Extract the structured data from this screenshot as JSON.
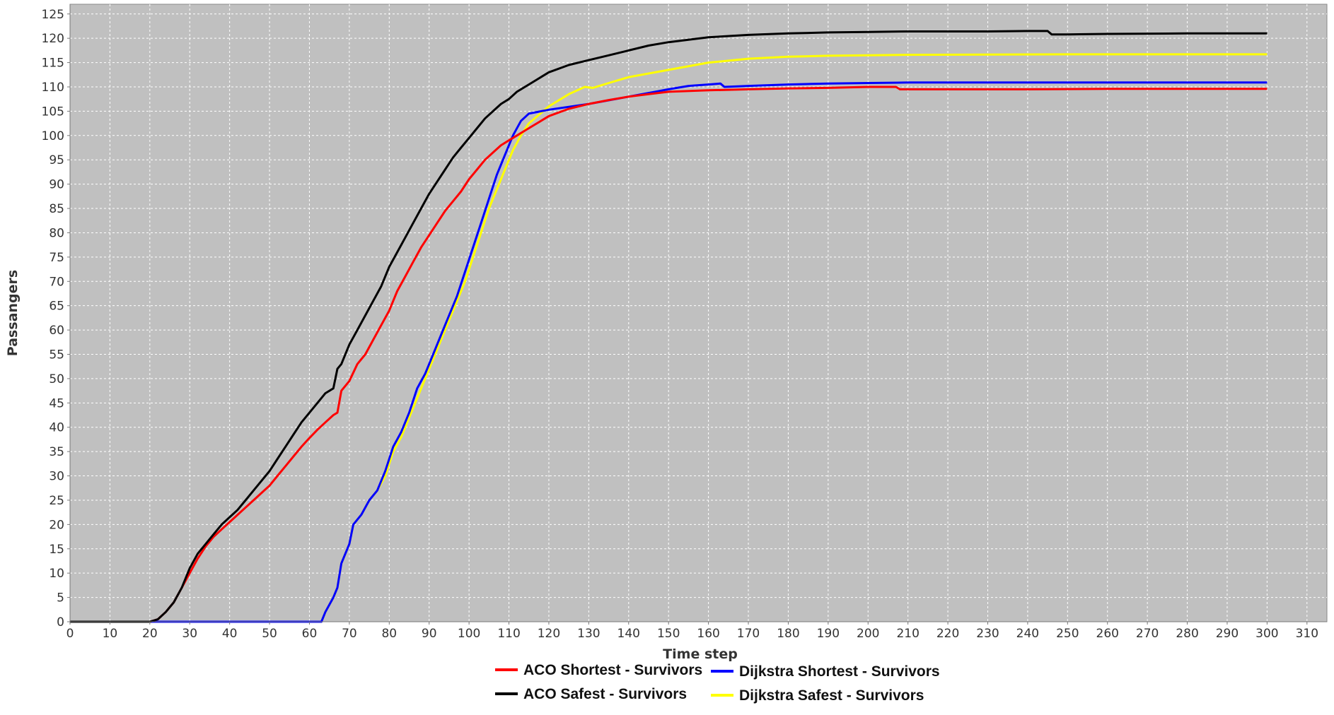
{
  "chart_data": {
    "type": "line",
    "xlabel": "Time step",
    "ylabel": "Passangers",
    "xlim": [
      0,
      315
    ],
    "ylim": [
      0,
      127
    ],
    "xticks": [
      0,
      10,
      20,
      30,
      40,
      50,
      60,
      70,
      80,
      90,
      100,
      110,
      120,
      130,
      140,
      150,
      160,
      170,
      180,
      190,
      200,
      210,
      220,
      230,
      240,
      250,
      260,
      270,
      280,
      290,
      300,
      310
    ],
    "yticks": [
      0,
      5,
      10,
      15,
      20,
      25,
      30,
      35,
      40,
      45,
      50,
      55,
      60,
      65,
      70,
      75,
      80,
      85,
      90,
      95,
      100,
      105,
      110,
      115,
      120,
      125
    ],
    "grid": true,
    "legend_position": "bottom",
    "colors": {
      "plot_background": "#c0c0c0",
      "grid": "#ffffff",
      "aco_shortest": "#ff0000",
      "aco_safest": "#000000",
      "dijkstra_shortest": "#0000ff",
      "dijkstra_safest": "#ffff00"
    },
    "series": [
      {
        "name": "ACO Shortest - Survivors",
        "color": "#ff0000",
        "x": [
          0,
          20,
          22,
          24,
          26,
          28,
          30,
          32,
          34,
          36,
          38,
          40,
          42,
          44,
          46,
          48,
          50,
          52,
          54,
          56,
          58,
          60,
          62,
          64,
          66,
          67,
          68,
          70,
          72,
          74,
          76,
          78,
          80,
          82,
          84,
          86,
          88,
          90,
          92,
          94,
          96,
          98,
          100,
          102,
          104,
          106,
          108,
          110,
          112,
          114,
          116,
          118,
          120,
          125,
          130,
          135,
          140,
          145,
          150,
          160,
          170,
          180,
          190,
          200,
          207,
          208,
          210,
          220,
          240,
          260,
          280,
          300
        ],
        "y": [
          0,
          0,
          0.5,
          2,
          4,
          7,
          10,
          13,
          15.5,
          17.5,
          19,
          20.5,
          22,
          23.5,
          25,
          26.5,
          28,
          30,
          32,
          34,
          36,
          37.8,
          39.5,
          41,
          42.5,
          43,
          47.5,
          49.5,
          53,
          55,
          58,
          61,
          64,
          68,
          71,
          74,
          77,
          79.5,
          82,
          84.5,
          86.5,
          88.5,
          91,
          93,
          95,
          96.5,
          98,
          99,
          100,
          101,
          102,
          103,
          104,
          105.5,
          106.5,
          107.3,
          108,
          108.5,
          109,
          109.3,
          109.5,
          109.7,
          109.8,
          110,
          110,
          109.5,
          109.5,
          109.5,
          109.5,
          109.6,
          109.6,
          109.6
        ]
      },
      {
        "name": "ACO Safest - Survivors",
        "color": "#000000",
        "x": [
          0,
          20,
          22,
          24,
          26,
          28,
          30,
          32,
          34,
          36,
          38,
          40,
          42,
          44,
          46,
          48,
          50,
          52,
          54,
          56,
          58,
          60,
          62,
          64,
          66,
          67,
          68,
          70,
          72,
          74,
          76,
          78,
          80,
          82,
          84,
          86,
          88,
          90,
          92,
          94,
          96,
          98,
          100,
          102,
          104,
          106,
          108,
          110,
          112,
          114,
          116,
          118,
          120,
          125,
          130,
          135,
          140,
          145,
          150,
          160,
          170,
          180,
          190,
          200,
          210,
          220,
          230,
          240,
          244,
          245,
          246,
          250,
          260,
          280,
          300
        ],
        "y": [
          0,
          0,
          0.5,
          2,
          4,
          7,
          11,
          14,
          16,
          18,
          20,
          21.5,
          23,
          25,
          27,
          29,
          31,
          33.5,
          36,
          38.5,
          41,
          43,
          45,
          47,
          48,
          52,
          53,
          57,
          60,
          63,
          66,
          69,
          73,
          76,
          79,
          82,
          85,
          88,
          90.5,
          93,
          95.5,
          97.5,
          99.5,
          101.5,
          103.5,
          105,
          106.5,
          107.5,
          109,
          110,
          111,
          112,
          113,
          114.5,
          115.5,
          116.5,
          117.5,
          118.5,
          119.2,
          120.2,
          120.7,
          121,
          121.2,
          121.3,
          121.4,
          121.4,
          121.4,
          121.5,
          121.5,
          121.5,
          120.8,
          120.8,
          120.9,
          121,
          121
        ]
      },
      {
        "name": "Dijkstra Shortest - Survivors",
        "color": "#0000ff",
        "x": [
          0,
          62,
          63,
          64,
          66,
          67,
          68,
          70,
          71,
          73,
          75,
          77,
          79,
          81,
          83,
          85,
          87,
          89,
          91,
          93,
          95,
          97,
          99,
          101,
          103,
          105,
          107,
          109,
          111,
          113,
          115,
          120,
          130,
          140,
          150,
          155,
          160,
          163,
          164,
          170,
          180,
          190,
          200,
          210,
          250,
          300
        ],
        "y": [
          0,
          0,
          0,
          2,
          5,
          7,
          12,
          16,
          20,
          22,
          25,
          27,
          31,
          36,
          39,
          43,
          48,
          51,
          55,
          59,
          63,
          67,
          72,
          77,
          82,
          87,
          92,
          96,
          100,
          103,
          104.5,
          105.3,
          106.5,
          108,
          109.5,
          110.2,
          110.5,
          110.7,
          110,
          110.2,
          110.5,
          110.7,
          110.8,
          110.9,
          110.9,
          110.9
        ]
      },
      {
        "name": "Dijkstra Safest - Survivors",
        "color": "#ffff00",
        "x": [
          0,
          62,
          63,
          64,
          66,
          67,
          68,
          70,
          71,
          73,
          75,
          77,
          79,
          81,
          83,
          85,
          87,
          89,
          91,
          93,
          95,
          97,
          99,
          101,
          103,
          105,
          107,
          109,
          111,
          113,
          115,
          120,
          125,
          129,
          131,
          135,
          140,
          150,
          160,
          170,
          180,
          190,
          200,
          210,
          250,
          300
        ],
        "y": [
          0,
          0,
          0,
          2,
          5,
          7,
          12,
          16,
          20,
          22,
          25,
          27,
          30,
          35,
          38,
          42,
          46,
          50,
          54,
          58,
          62,
          66,
          70,
          75,
          80,
          85,
          89,
          93,
          97,
          100,
          102.5,
          106,
          108.5,
          110,
          109.8,
          110.8,
          112,
          113.5,
          115,
          115.8,
          116.2,
          116.4,
          116.5,
          116.6,
          116.7,
          116.7
        ]
      }
    ]
  }
}
